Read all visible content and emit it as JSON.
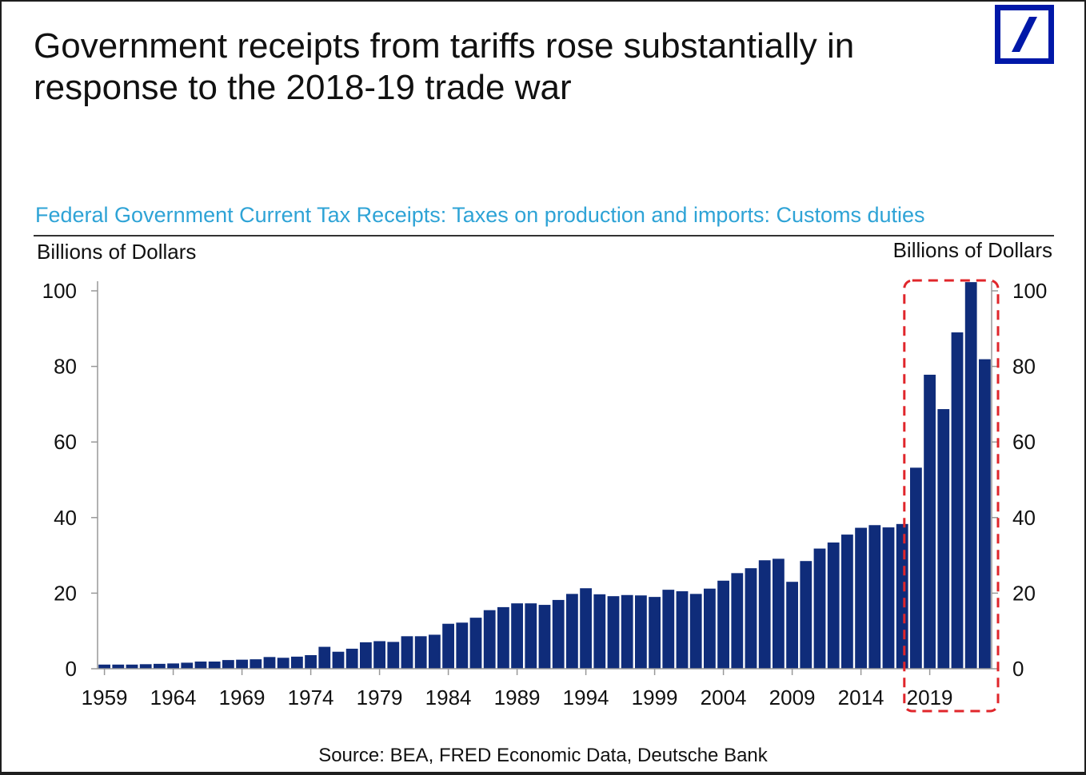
{
  "title": "Government receipts from tariffs rose substantially in response to the 2018-19 trade war",
  "logo_icon": "deutsche-bank-logo-icon",
  "subtitle": "Federal Government Current Tax Receipts: Taxes on production and imports: Customs duties",
  "source": "Source: BEA, FRED Economic Data, Deutsche Bank",
  "colors": {
    "bar": "#0f2c7a",
    "subtitle": "#2ea3d6",
    "highlight": "#e0262b",
    "logo": "#0018a8"
  },
  "chart_data": {
    "type": "bar",
    "title": "Federal Government Current Tax Receipts: Taxes on production and imports: Customs duties",
    "ylabel_left": "Billions of Dollars",
    "ylabel_right": "Billions of Dollars",
    "ylim": [
      0,
      100
    ],
    "yticks": [
      0,
      20,
      40,
      60,
      80,
      100
    ],
    "xtick_labels": [
      "1959",
      "1964",
      "1969",
      "1974",
      "1979",
      "1984",
      "1989",
      "1994",
      "1999",
      "2004",
      "2009",
      "2014",
      "2019"
    ],
    "grid": false,
    "categories": [
      1959,
      1960,
      1961,
      1962,
      1963,
      1964,
      1965,
      1966,
      1967,
      1968,
      1969,
      1970,
      1971,
      1972,
      1973,
      1974,
      1975,
      1976,
      1977,
      1978,
      1979,
      1980,
      1981,
      1982,
      1983,
      1984,
      1985,
      1986,
      1987,
      1988,
      1989,
      1990,
      1991,
      1992,
      1993,
      1994,
      1995,
      1996,
      1997,
      1998,
      1999,
      2000,
      2001,
      2002,
      2003,
      2004,
      2005,
      2006,
      2007,
      2008,
      2009,
      2010,
      2011,
      2012,
      2013,
      2014,
      2015,
      2016,
      2017,
      2018,
      2019,
      2020,
      2021,
      2022,
      2023
    ],
    "values": [
      1.1,
      1.1,
      1.1,
      1.2,
      1.3,
      1.4,
      1.6,
      1.9,
      1.9,
      2.3,
      2.4,
      2.5,
      3.1,
      2.9,
      3.2,
      3.6,
      5.8,
      4.5,
      5.3,
      7.0,
      7.3,
      7.1,
      8.6,
      8.6,
      9.0,
      11.9,
      12.2,
      13.5,
      15.5,
      16.3,
      17.3,
      17.3,
      16.9,
      18.2,
      19.8,
      21.3,
      19.7,
      19.2,
      19.5,
      19.4,
      19.0,
      20.9,
      20.5,
      19.8,
      21.2,
      23.3,
      25.3,
      26.6,
      28.7,
      29.1,
      23.0,
      28.5,
      31.8,
      33.4,
      35.5,
      37.3,
      38.0,
      37.4,
      38.3,
      53.2,
      77.8,
      68.7,
      89.0,
      102.3,
      81.9
    ],
    "annotation": {
      "type": "dashed-box",
      "from": 2018,
      "to": 2023,
      "color": "#e0262b"
    }
  }
}
